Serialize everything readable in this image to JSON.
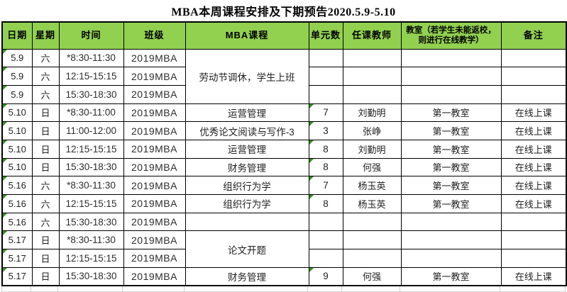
{
  "title": "MBA本周课程安排及下期预告2020.5.9-5.10",
  "colors": {
    "header_bg": "#92D050",
    "error_flag_green": "#35921d",
    "border": "#000000"
  },
  "table": {
    "headers": [
      "日期",
      "星期",
      "时间",
      "班级",
      "MBA课程",
      "单元数",
      "任课教师",
      "教室（若学生未能返校，则进行在线教学）",
      "备注"
    ],
    "rows": [
      {
        "date": "5.9",
        "week": "六",
        "time": "*8:30-11:30",
        "class": "2019MBA",
        "course": "劳动节调休，学生上班",
        "course_span": 3,
        "units": "",
        "teacher": "",
        "room": "",
        "note": ""
      },
      {
        "date": "5.9",
        "week": "六",
        "time": "12:15-15:15",
        "class": "2019MBA",
        "course": null,
        "units": "",
        "teacher": "",
        "room": "",
        "note": ""
      },
      {
        "date": "5.9",
        "week": "六",
        "time": "15:30-18:30",
        "class": "2019MBA",
        "course": null,
        "units": "",
        "teacher": "",
        "room": "",
        "note": ""
      },
      {
        "date": "5.10",
        "week": "日",
        "time": "*8:30-11:00",
        "class": "2019MBA",
        "course": "运营管理",
        "units": "7",
        "teacher": "刘勤明",
        "room": "第一教室",
        "note": "在线上课"
      },
      {
        "date": "5.10",
        "week": "日",
        "time": "11:00-12:00",
        "class": "2019MBA",
        "course": "优秀论文阅读与写作-3",
        "units": "3",
        "teacher": "张峥",
        "room": "第一教室",
        "note": "在线上课"
      },
      {
        "date": "5.10",
        "week": "日",
        "time": "12:15-15:15",
        "class": "2019MBA",
        "course": "运营管理",
        "units": "8",
        "teacher": "刘勤明",
        "room": "第一教室",
        "note": "在线上课"
      },
      {
        "date": "5.10",
        "week": "日",
        "time": "15:30-18:30",
        "class": "2019MBA",
        "course": "财务管理",
        "units": "8",
        "teacher": "何强",
        "room": "第一教室",
        "note": "在线上课"
      },
      {
        "date": "5.16",
        "week": "六",
        "time": "*8:30-11:30",
        "class": "2019MBA",
        "course": "组织行为学",
        "units": "7",
        "teacher": "杨玉英",
        "room": "第一教室",
        "note": "在线上课"
      },
      {
        "date": "5.16",
        "week": "六",
        "time": "12:15-15:15",
        "class": "2019MBA",
        "course": "组织行为学",
        "units": "8",
        "teacher": "杨玉英",
        "room": "第一教室",
        "note": "在线上课"
      },
      {
        "date": "5.16",
        "week": "六",
        "time": "15:30-18:30",
        "class": "2019MBA",
        "course": "",
        "units": "",
        "teacher": "",
        "room": "",
        "note": ""
      },
      {
        "date": "5.17",
        "week": "日",
        "time": "*8:30-11:30",
        "class": "2019MBA",
        "course": "论文开题",
        "course_span": 2,
        "units": "",
        "teacher": "",
        "room": "",
        "note": ""
      },
      {
        "date": "5.17",
        "week": "日",
        "time": "12:15-15:15",
        "class": "2019MBA",
        "course": null,
        "units": "",
        "teacher": "",
        "room": "",
        "note": ""
      },
      {
        "date": "5.17",
        "week": "日",
        "time": "15:30-18:30",
        "class": "2019MBA",
        "course": "财务管理",
        "units": "9",
        "teacher": "何强",
        "room": "第一教室",
        "note": "在线上课"
      }
    ]
  }
}
